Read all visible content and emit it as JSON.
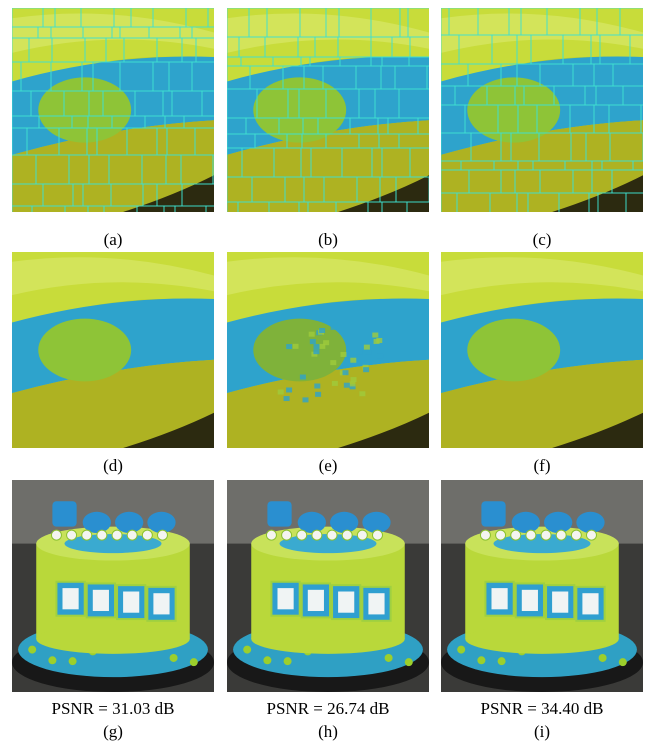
{
  "panels": [
    {
      "label": "(a)"
    },
    {
      "label": "(b)"
    },
    {
      "label": "(c)"
    },
    {
      "label": "(d)"
    },
    {
      "label": "(e)"
    },
    {
      "label": "(f)"
    },
    {
      "label": "(g)",
      "caption": "PSNR = 31.03 dB"
    },
    {
      "label": "(h)",
      "caption": "PSNR = 26.74 dB"
    },
    {
      "label": "(i)",
      "caption": "PSNR = 34.40 dB"
    }
  ]
}
